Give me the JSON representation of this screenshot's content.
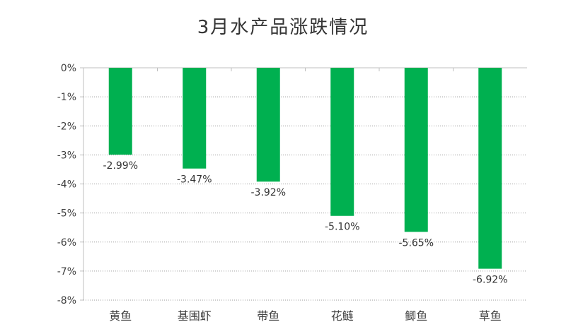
{
  "chart_data": {
    "type": "bar",
    "title": "3月水产品涨跌情况",
    "xlabel": "",
    "ylabel": "",
    "categories": [
      "黄鱼",
      "基围虾",
      "带鱼",
      "花鲢",
      "鲫鱼",
      "草鱼"
    ],
    "values": [
      -2.99,
      -3.47,
      -3.92,
      -5.1,
      -5.65,
      -6.92
    ],
    "data_labels": [
      "-2.99%",
      "-3.47%",
      "-3.92%",
      "-5.10%",
      "-5.65%",
      "-6.92%"
    ],
    "ylim": [
      -8,
      0
    ],
    "yticks": [
      0,
      -1,
      -2,
      -3,
      -4,
      -5,
      -6,
      -7,
      -8
    ],
    "ytick_labels": [
      "0%",
      "-1%",
      "-2%",
      "-3%",
      "-4%",
      "-5%",
      "-6%",
      "-7%",
      "-8%"
    ],
    "grid": "horizontal dotted",
    "legend": "none",
    "bar_color": "#00b050"
  }
}
